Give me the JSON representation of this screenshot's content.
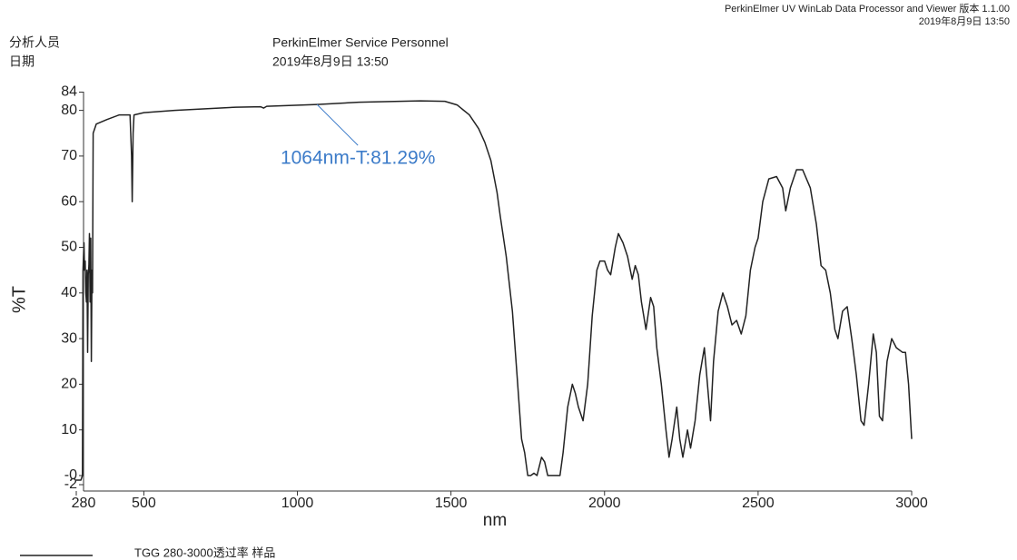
{
  "header": {
    "software": "PerkinElmer UV WinLab Data Processor and Viewer 版本 1.1.00",
    "timestamp": "2019年8月9日 13:50",
    "fields": [
      {
        "label": "分析人员",
        "value": "PerkinElmer Service Personnel"
      },
      {
        "label": "日期",
        "value": "2019年8月9日 13:50"
      }
    ]
  },
  "chart_data": {
    "type": "line",
    "x_label": "nm",
    "y_label": "%T",
    "xlim": [
      280,
      3000
    ],
    "ylim": [
      -2,
      84
    ],
    "xticks": [
      280,
      500,
      1000,
      1500,
      2000,
      2500,
      3000
    ],
    "yticks": [
      -2,
      {
        "value": 0,
        "label": "-0"
      },
      10,
      20,
      30,
      40,
      50,
      60,
      70,
      80,
      84
    ],
    "x": [
      280,
      295,
      300,
      302,
      305,
      307,
      309,
      311,
      313,
      315,
      317,
      319,
      321,
      323,
      325,
      327,
      329,
      331,
      333,
      335,
      345,
      380,
      420,
      455,
      460,
      462,
      465,
      468,
      500,
      600,
      800,
      880,
      890,
      900,
      1064,
      1200,
      1400,
      1480,
      1520,
      1560,
      1590,
      1610,
      1630,
      1650,
      1660,
      1680,
      1700,
      1715,
      1730,
      1740,
      1750,
      1760,
      1770,
      1780,
      1795,
      1805,
      1815,
      1830,
      1855,
      1865,
      1880,
      1895,
      1905,
      1915,
      1930,
      1945,
      1960,
      1975,
      1985,
      2000,
      2010,
      2020,
      2035,
      2045,
      2060,
      2075,
      2090,
      2100,
      2110,
      2120,
      2135,
      2150,
      2160,
      2170,
      2185,
      2200,
      2210,
      2220,
      2235,
      2245,
      2255,
      2270,
      2280,
      2295,
      2310,
      2325,
      2335,
      2345,
      2355,
      2370,
      2385,
      2400,
      2415,
      2430,
      2445,
      2460,
      2475,
      2490,
      2500,
      2515,
      2535,
      2560,
      2580,
      2590,
      2605,
      2625,
      2645,
      2670,
      2690,
      2705,
      2720,
      2735,
      2750,
      2760,
      2775,
      2790,
      2805,
      2820,
      2835,
      2845,
      2860,
      2875,
      2885,
      2895,
      2905,
      2920,
      2935,
      2950,
      2970,
      2980,
      2990,
      3000
    ],
    "series": [
      {
        "name": "TGG 280-3000透过率 样品",
        "color": "#222222",
        "values": [
          -1,
          -1,
          0,
          45,
          51,
          45,
          47,
          40,
          38,
          45,
          27,
          44,
          46,
          53,
          38,
          52,
          25,
          45,
          40,
          75,
          77,
          78,
          79,
          79,
          70,
          60,
          75,
          79,
          79.5,
          80,
          80.7,
          80.8,
          80.5,
          80.9,
          81.29,
          81.8,
          82.1,
          82,
          81.2,
          79,
          76,
          73,
          69,
          62,
          57,
          48,
          36,
          22,
          8,
          5,
          0,
          0,
          0.5,
          0,
          4,
          3,
          0,
          0,
          0,
          5,
          15,
          20,
          18,
          15,
          12,
          20,
          35,
          45,
          47,
          47,
          45,
          44,
          50,
          53,
          51,
          48,
          43,
          46,
          44,
          38,
          32,
          39,
          37,
          28,
          20,
          10,
          4,
          8,
          15,
          8,
          4,
          10,
          6,
          12,
          22,
          28,
          20,
          12,
          25,
          36,
          40,
          37,
          33,
          34,
          31,
          35,
          45,
          50,
          52,
          60,
          65,
          65.5,
          63,
          58,
          63,
          67,
          67,
          63,
          55,
          46,
          45,
          40,
          32,
          30,
          36,
          37,
          30,
          22,
          12,
          11,
          20,
          31,
          27,
          13,
          12,
          25,
          30,
          28,
          27,
          27,
          20,
          8
        ]
      }
    ],
    "annotations": [
      {
        "text": "1064nm-T:81.29%",
        "x": 1064,
        "y": 81.29,
        "color": "#3d7cc9"
      }
    ]
  }
}
